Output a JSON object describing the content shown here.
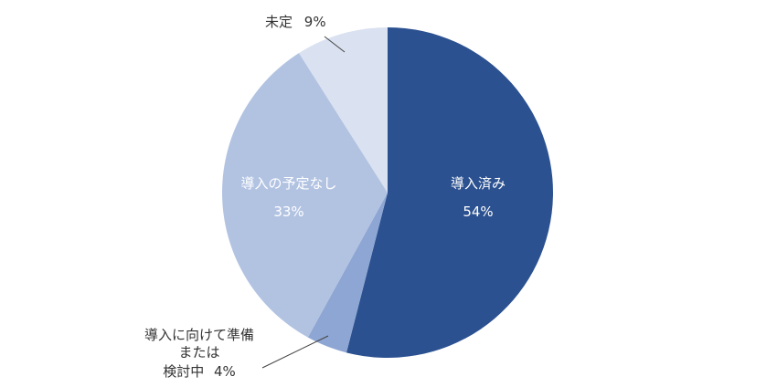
{
  "chart_data": {
    "type": "pie",
    "title": "",
    "slices": [
      {
        "label_lines": [
          "導入済み"
        ],
        "value_text": "54%",
        "value": 54,
        "color": "#2b5190"
      },
      {
        "label_lines": [
          "導入に向けて準備",
          "または",
          "検討中"
        ],
        "value_text": "4%",
        "value": 4,
        "color": "#8ea6d3"
      },
      {
        "label_lines": [
          "導入の予定なし"
        ],
        "value_text": "33%",
        "value": 33,
        "color": "#b2c3e2"
      },
      {
        "label_lines": [
          "未定"
        ],
        "value_text": "9%",
        "value": 9,
        "color": "#dae1f0"
      }
    ]
  }
}
